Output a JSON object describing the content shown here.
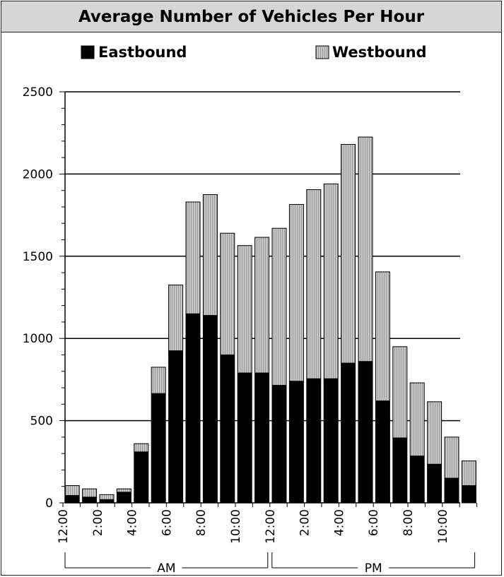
{
  "chart_data": {
    "type": "bar",
    "stacked": true,
    "title": "Average Number of Vehicles Per Hour",
    "xlabel": "",
    "ylabel": "",
    "ylim": [
      0,
      2500
    ],
    "yticks": [
      0,
      500,
      1000,
      1500,
      2000,
      2500
    ],
    "y_minor_step": 100,
    "grid": "horizontal",
    "legend_placement": "top",
    "hours": 24,
    "x_tick_labels": [
      "12:00",
      "2:00",
      "4:00",
      "6:00",
      "8:00",
      "10:00",
      "12:00",
      "2:00",
      "4:00",
      "6:00",
      "8:00",
      "10:00"
    ],
    "groups": [
      {
        "label": "AM",
        "from_hour": 0,
        "to_hour": 12
      },
      {
        "label": "PM",
        "from_hour": 12,
        "to_hour": 24
      }
    ],
    "series": [
      {
        "name": "Eastbound",
        "color": "#000000",
        "values": [
          45,
          35,
          20,
          65,
          310,
          665,
          925,
          1150,
          1140,
          900,
          790,
          790,
          715,
          740,
          755,
          755,
          850,
          860,
          620,
          395,
          285,
          235,
          150,
          105
        ]
      },
      {
        "name": "Westbound",
        "color": "#bdbdbd",
        "values": [
          60,
          50,
          30,
          20,
          50,
          160,
          400,
          680,
          735,
          740,
          775,
          825,
          955,
          1075,
          1150,
          1185,
          1330,
          1365,
          785,
          555,
          445,
          380,
          250,
          150
        ]
      }
    ]
  }
}
